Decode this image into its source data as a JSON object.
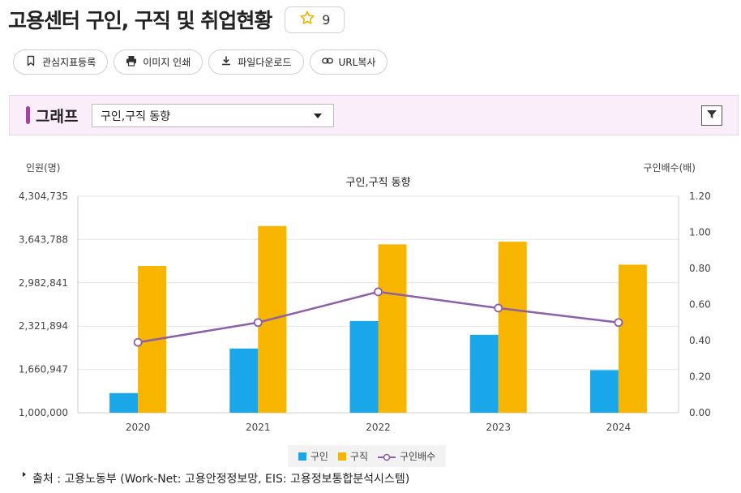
{
  "page": {
    "title": "고용센터 구인, 구직 및 취업현황",
    "favorite_count": "9"
  },
  "actions": [
    {
      "label": "관심지표등록",
      "icon": "bookmark-icon"
    },
    {
      "label": "이미지 인쇄",
      "icon": "printer-icon"
    },
    {
      "label": "파일다운로드",
      "icon": "download-icon"
    },
    {
      "label": "URL복사",
      "icon": "link-icon"
    }
  ],
  "graph_panel": {
    "label": "그래프",
    "selected_view": "구인,구직 동향"
  },
  "colors": {
    "job_offers": "#1aa7ea",
    "job_seekers": "#f7b500",
    "ratio_line": "#8e5ea8",
    "accent": "#a342a3"
  },
  "chart_data": {
    "type": "bar",
    "title": "구인,구직 동향",
    "ylabel": "인원(명)",
    "y2label": "구인배수(배)",
    "categories": [
      "2020",
      "2021",
      "2022",
      "2023",
      "2024"
    ],
    "ylim": [
      1000000,
      4304735
    ],
    "yticks": [
      "1,000,000",
      "1,660,947",
      "2,321,894",
      "2,982,841",
      "3,643,788",
      "4,304,735"
    ],
    "y2lim": [
      0,
      1.2
    ],
    "y2ticks": [
      "0.00",
      "0.20",
      "0.40",
      "0.60",
      "0.80",
      "1.00",
      "1.20"
    ],
    "series": [
      {
        "name": "구인",
        "type": "bar",
        "axis": "left",
        "values": [
          1300000,
          1980000,
          2400000,
          2190000,
          1650000
        ]
      },
      {
        "name": "구직",
        "type": "bar",
        "axis": "left",
        "values": [
          3240000,
          3850000,
          3570000,
          3610000,
          3260000
        ]
      },
      {
        "name": "구인배수",
        "type": "line",
        "axis": "right",
        "values": [
          0.39,
          0.5,
          0.67,
          0.58,
          0.5
        ]
      }
    ]
  },
  "source": {
    "text": "출처 : 고용노동부 (Work-Net: 고용안정정보망, EIS: 고용정보통합분석시스템)"
  }
}
